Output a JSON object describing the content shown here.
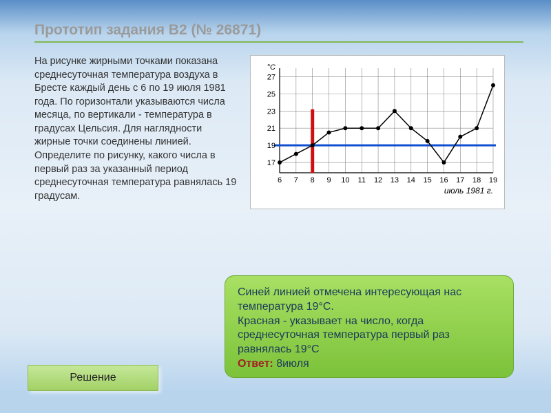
{
  "title": "Прототип задания B2 (№ 26871)",
  "problem_text": "На рисунке жирными точками показана среднесуточная температура воздуха в Бресте каждый день с 6 по 19 июля 1981 года. По горизонтали указываются числа месяца, по вертикали - температура в градусах Цельсия. Для наглядности жирные точки соединены линией. Определите по рисунку, какого числа в первый раз за указанный период среднесуточная температура равнялась 19 градусам.",
  "chart": {
    "type": "line",
    "y_unit": "°C",
    "x_caption": "июль 1981 г.",
    "x_values": [
      6,
      7,
      8,
      9,
      10,
      11,
      12,
      13,
      14,
      15,
      16,
      17,
      18,
      19
    ],
    "y_ticks": [
      17,
      19,
      21,
      23,
      25,
      27
    ],
    "points": [
      {
        "x": 6,
        "y": 17
      },
      {
        "x": 7,
        "y": 18
      },
      {
        "x": 8,
        "y": 19
      },
      {
        "x": 9,
        "y": 20.5
      },
      {
        "x": 10,
        "y": 21
      },
      {
        "x": 11,
        "y": 21
      },
      {
        "x": 12,
        "y": 21
      },
      {
        "x": 13,
        "y": 23
      },
      {
        "x": 14,
        "y": 21
      },
      {
        "x": 15,
        "y": 19.5
      },
      {
        "x": 16,
        "y": 17
      },
      {
        "x": 17,
        "y": 20
      },
      {
        "x": 18,
        "y": 21
      },
      {
        "x": 19,
        "y": 26
      }
    ],
    "grid_color": "#888888",
    "line_color": "#000000",
    "point_color": "#000000",
    "background_color": "#ffffff",
    "horiz_marker": {
      "y": 19,
      "color": "#1050d0",
      "width": 3
    },
    "vert_marker": {
      "x": 8,
      "y_top": 23.2,
      "color": "#d01010",
      "width": 5
    },
    "axis_fontsize": 11,
    "caption_fontsize": 12,
    "caption_style": "italic"
  },
  "bubble": {
    "line1": "Синей линией отмечена интересующая нас температура 19°С.",
    "line2": "Красная - указывает на число, когда среднесуточная температура первый раз равнялась 19°С",
    "answer_label": "Ответ:",
    "answer_value": "8июля"
  },
  "solution_button": "Решение"
}
